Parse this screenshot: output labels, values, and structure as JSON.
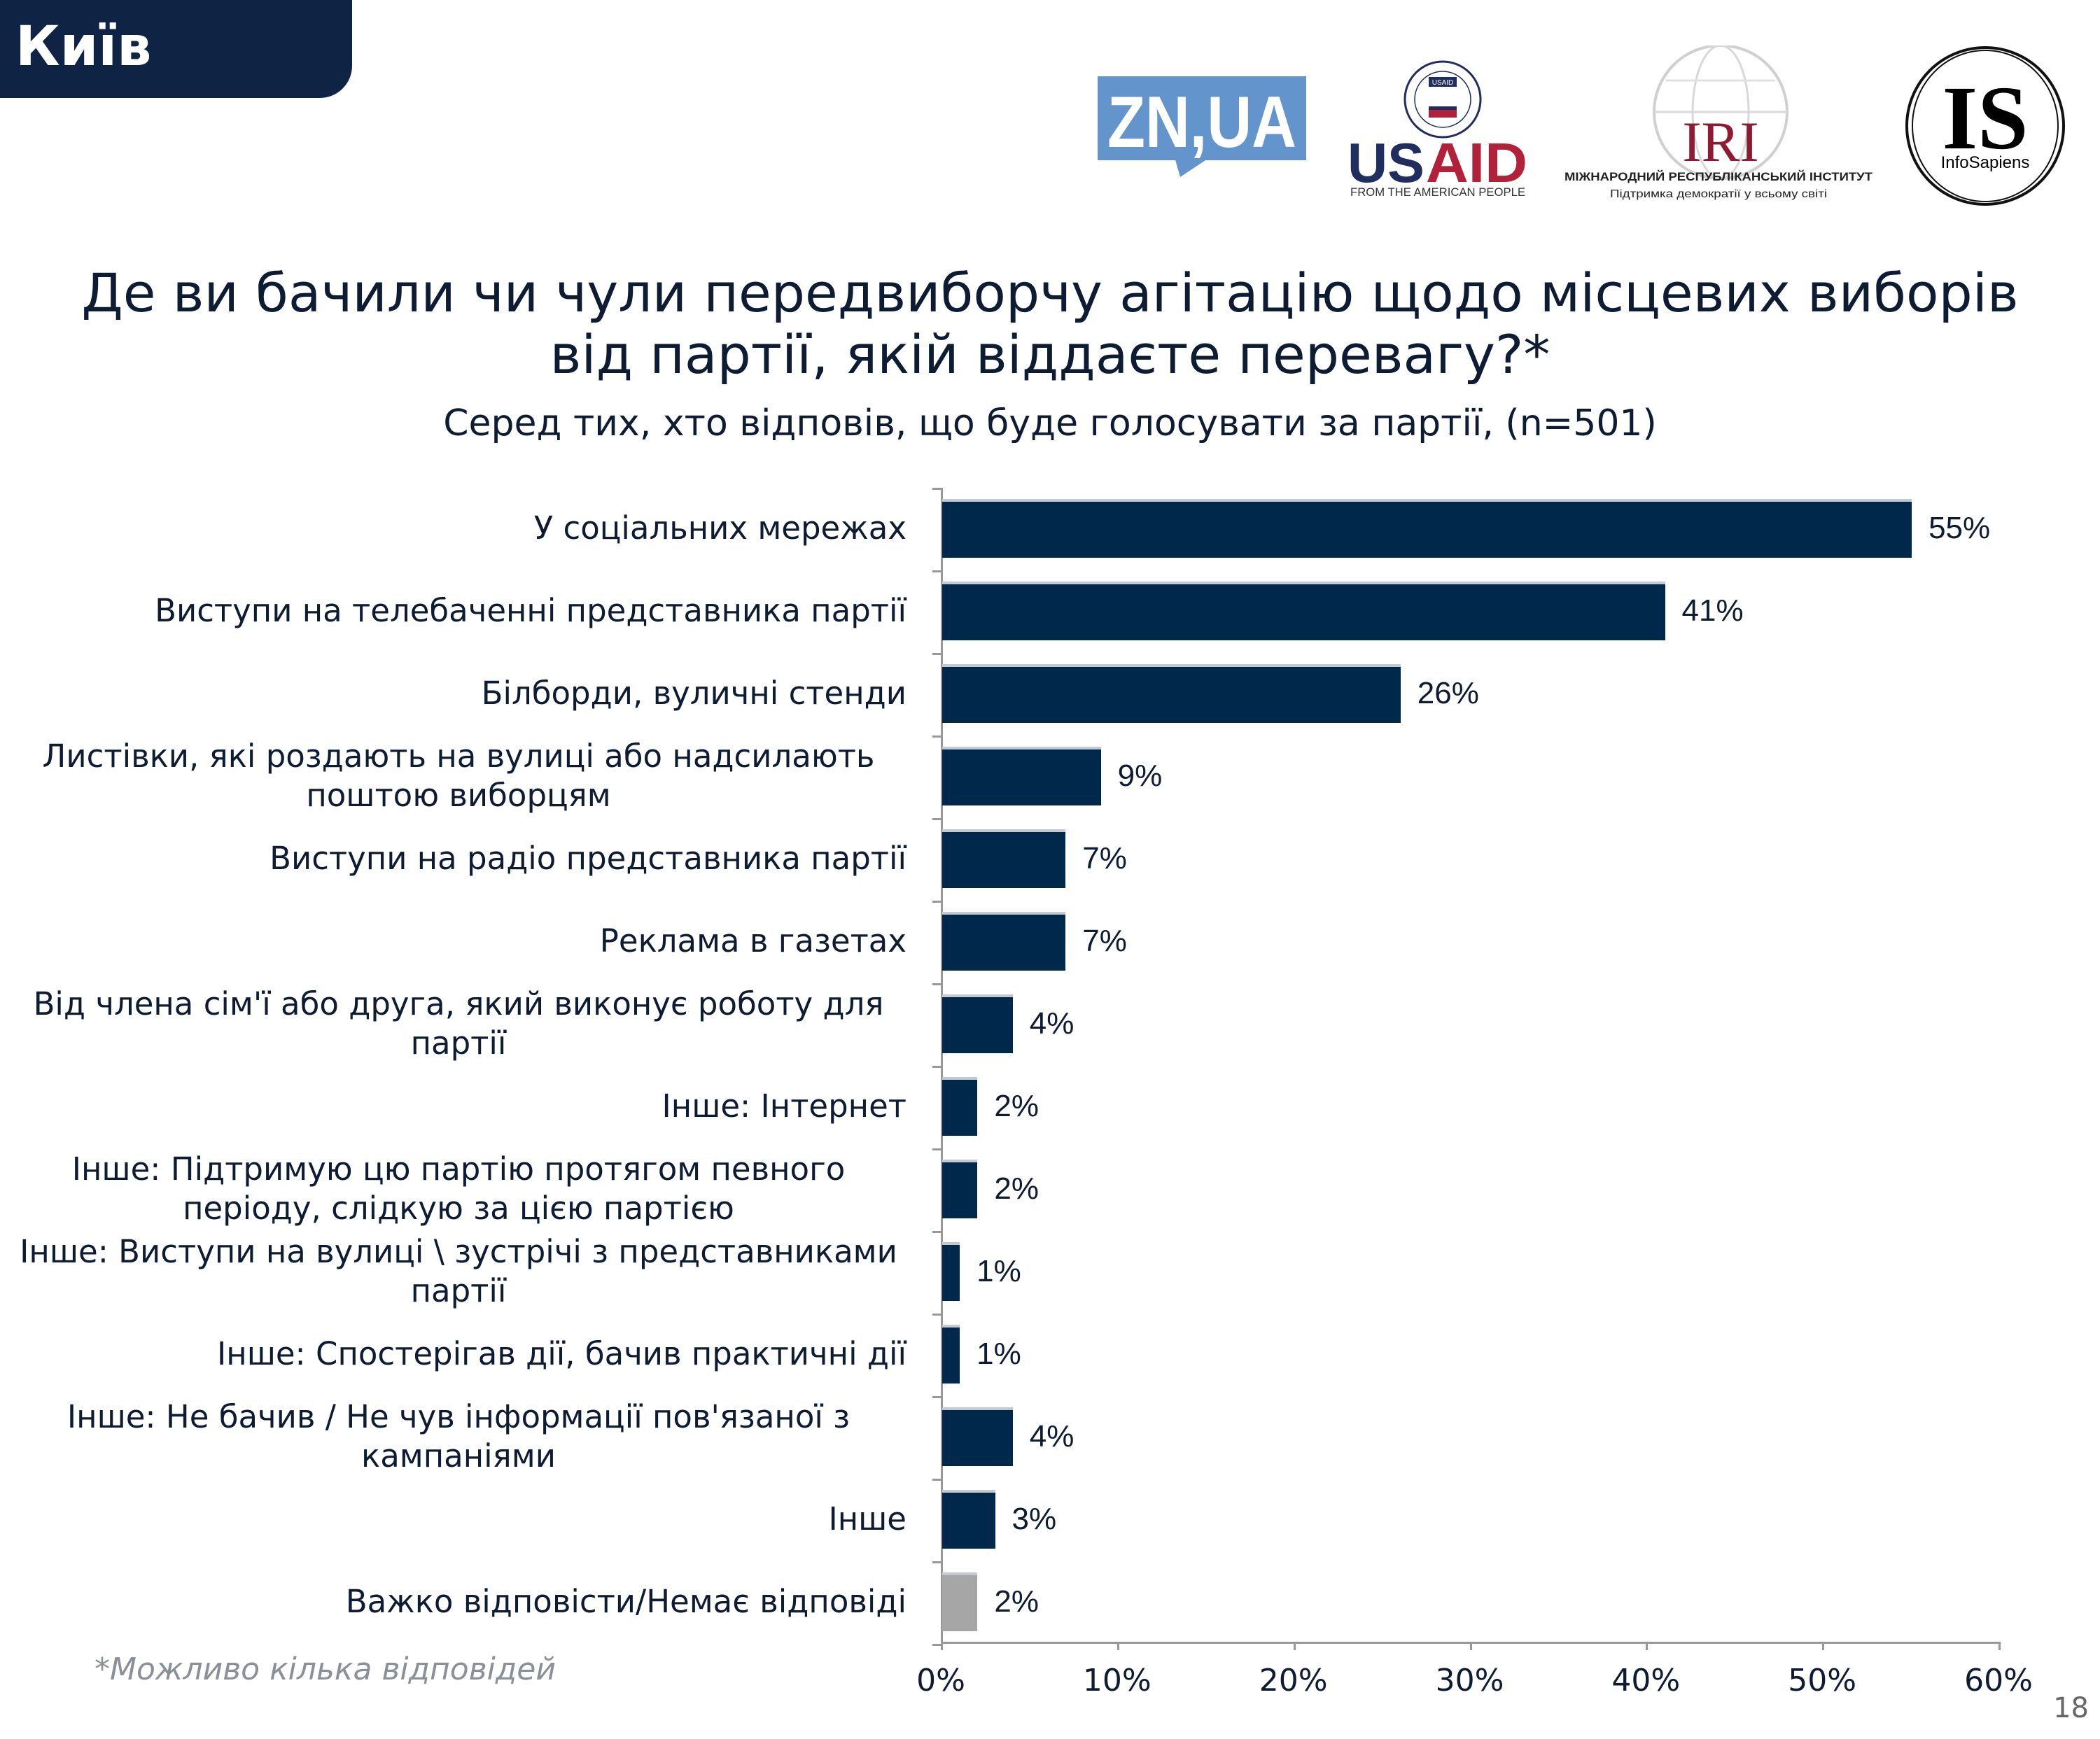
{
  "header": {
    "region": "Київ",
    "page_number": "18"
  },
  "logos": {
    "zn": "ZN,UA",
    "usaid": {
      "name": "USAID",
      "tagline": "FROM THE AMERICAN PEOPLE",
      "seal": "USAID"
    },
    "iri": {
      "name": "IRI",
      "line1": "МІЖНАРОДНИЙ РЕСПУБЛІКАНСЬКИЙ ІНСТИТУТ",
      "line2": "Підтримка демократії у всьому світі"
    },
    "infosapiens": {
      "mark": "IS",
      "name": "InfoSapiens"
    }
  },
  "footnote": "*Можливо кілька відповідей",
  "colors": {
    "primary": "#00284a",
    "muted": "#a6a6a6",
    "header": "#0f2444"
  },
  "chart_data": {
    "type": "bar",
    "orientation": "horizontal",
    "title": "Де ви бачили чи чули передвиборчу агітацію щодо місцевих виборів від партії, якій віддаєте перевагу?*",
    "subtitle": "Серед тих, хто відповів, що буде голосувати за партії, (n=501)",
    "categories": [
      "У соціальних мережах",
      "Виступи на телебаченні представника партії",
      "Білборди, вуличні стенди",
      "Листівки, які роздають на вулиці або надсилають поштою виборцям",
      "Виступи на радіо представника партії",
      "Реклама в газетах",
      "Від члена сім'ї або друга, який виконує роботу для партії",
      "Інше: Інтернет",
      "Інше: Підтримую цю партію протягом певного періоду, слідкую за цією партією",
      "Інше: Виступи на вулиці \\ зустрічі з представниками партії",
      "Інше: Спостерігав дії, бачив практичні дії",
      "Інше: Не бачив / Не чув інформації пов'язаної з кампаніями",
      "Інше",
      "Важко відповісти/Немає відповіді"
    ],
    "values": [
      55,
      41,
      26,
      9,
      7,
      7,
      4,
      2,
      2,
      1,
      1,
      4,
      3,
      2
    ],
    "labels": [
      "55%",
      "41%",
      "26%",
      "9%",
      "7%",
      "7%",
      "4%",
      "2%",
      "2%",
      "1%",
      "1%",
      "4%",
      "3%",
      "2%"
    ],
    "bar_colors": [
      "#00284a",
      "#00284a",
      "#00284a",
      "#00284a",
      "#00284a",
      "#00284a",
      "#00284a",
      "#00284a",
      "#00284a",
      "#00284a",
      "#00284a",
      "#00284a",
      "#00284a",
      "#a6a6a6"
    ],
    "xlim": [
      0,
      60
    ],
    "xticks": [
      "0%",
      "10%",
      "20%",
      "30%",
      "40%",
      "50%",
      "60%"
    ],
    "grid": false,
    "legend": "none"
  }
}
